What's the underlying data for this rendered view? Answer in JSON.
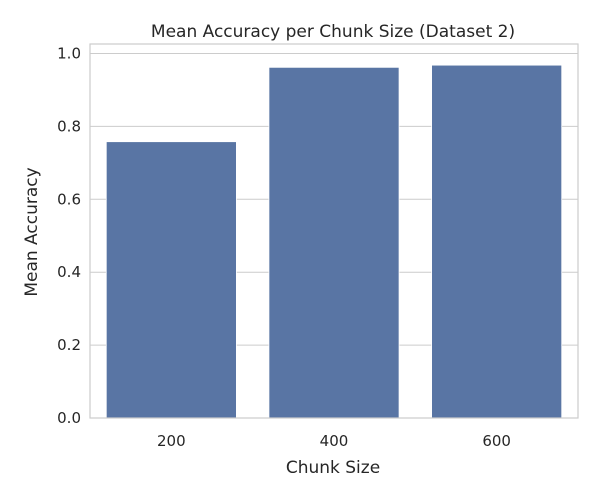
{
  "chart_data": {
    "type": "bar",
    "title": "Mean Accuracy per Chunk Size (Dataset 2)",
    "xlabel": "Chunk Size",
    "ylabel": "Mean Accuracy",
    "categories": [
      "200",
      "400",
      "600"
    ],
    "values": [
      0.758,
      0.962,
      0.968
    ],
    "ylim": [
      0.0,
      1.0
    ],
    "yticks": [
      0.0,
      0.2,
      0.4,
      0.6,
      0.8,
      1.0
    ],
    "ytick_labels": [
      "0.0",
      "0.2",
      "0.4",
      "0.6",
      "0.8",
      "1.0"
    ],
    "grid": "horizontal",
    "bar_color": "#5975a4"
  }
}
